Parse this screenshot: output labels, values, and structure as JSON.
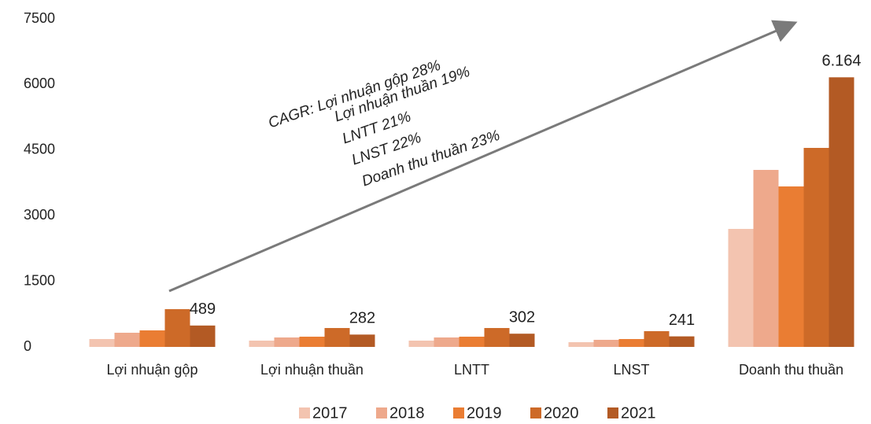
{
  "chart_data": {
    "type": "bar",
    "categories": [
      "Lợi nhuận gộp",
      "Lợi nhuận thuần",
      "LNTT",
      "LNST",
      "Doanh thu thuần"
    ],
    "series": [
      {
        "name": "2017",
        "color": "#f3c4b0",
        "values": [
          180,
          144,
          144,
          108,
          2698
        ]
      },
      {
        "name": "2018",
        "color": "#eea98c",
        "values": [
          324,
          216,
          216,
          162,
          4047
        ]
      },
      {
        "name": "2019",
        "color": "#ea7d33",
        "values": [
          378,
          234,
          234,
          180,
          3669
        ]
      },
      {
        "name": "2020",
        "color": "#cd6a28",
        "values": [
          863,
          432,
          432,
          360,
          4550
        ]
      },
      {
        "name": "2021",
        "color": "#b35a24",
        "values": [
          489,
          282,
          302,
          241,
          6164
        ],
        "value_labels": [
          "489",
          "282",
          "302",
          "241",
          "6.164"
        ]
      }
    ],
    "ylim": [
      0,
      7500
    ],
    "yticks": [
      0,
      1500,
      3000,
      4500,
      6000,
      7500
    ],
    "annotations": [
      "CAGR: Lợi nhuận gộp 28%",
      "Lợi nhuận thuần 19%",
      "LNTT 21%",
      "LNST 22%",
      "Doanh thu thuần 23%"
    ],
    "legend": "bottom"
  }
}
